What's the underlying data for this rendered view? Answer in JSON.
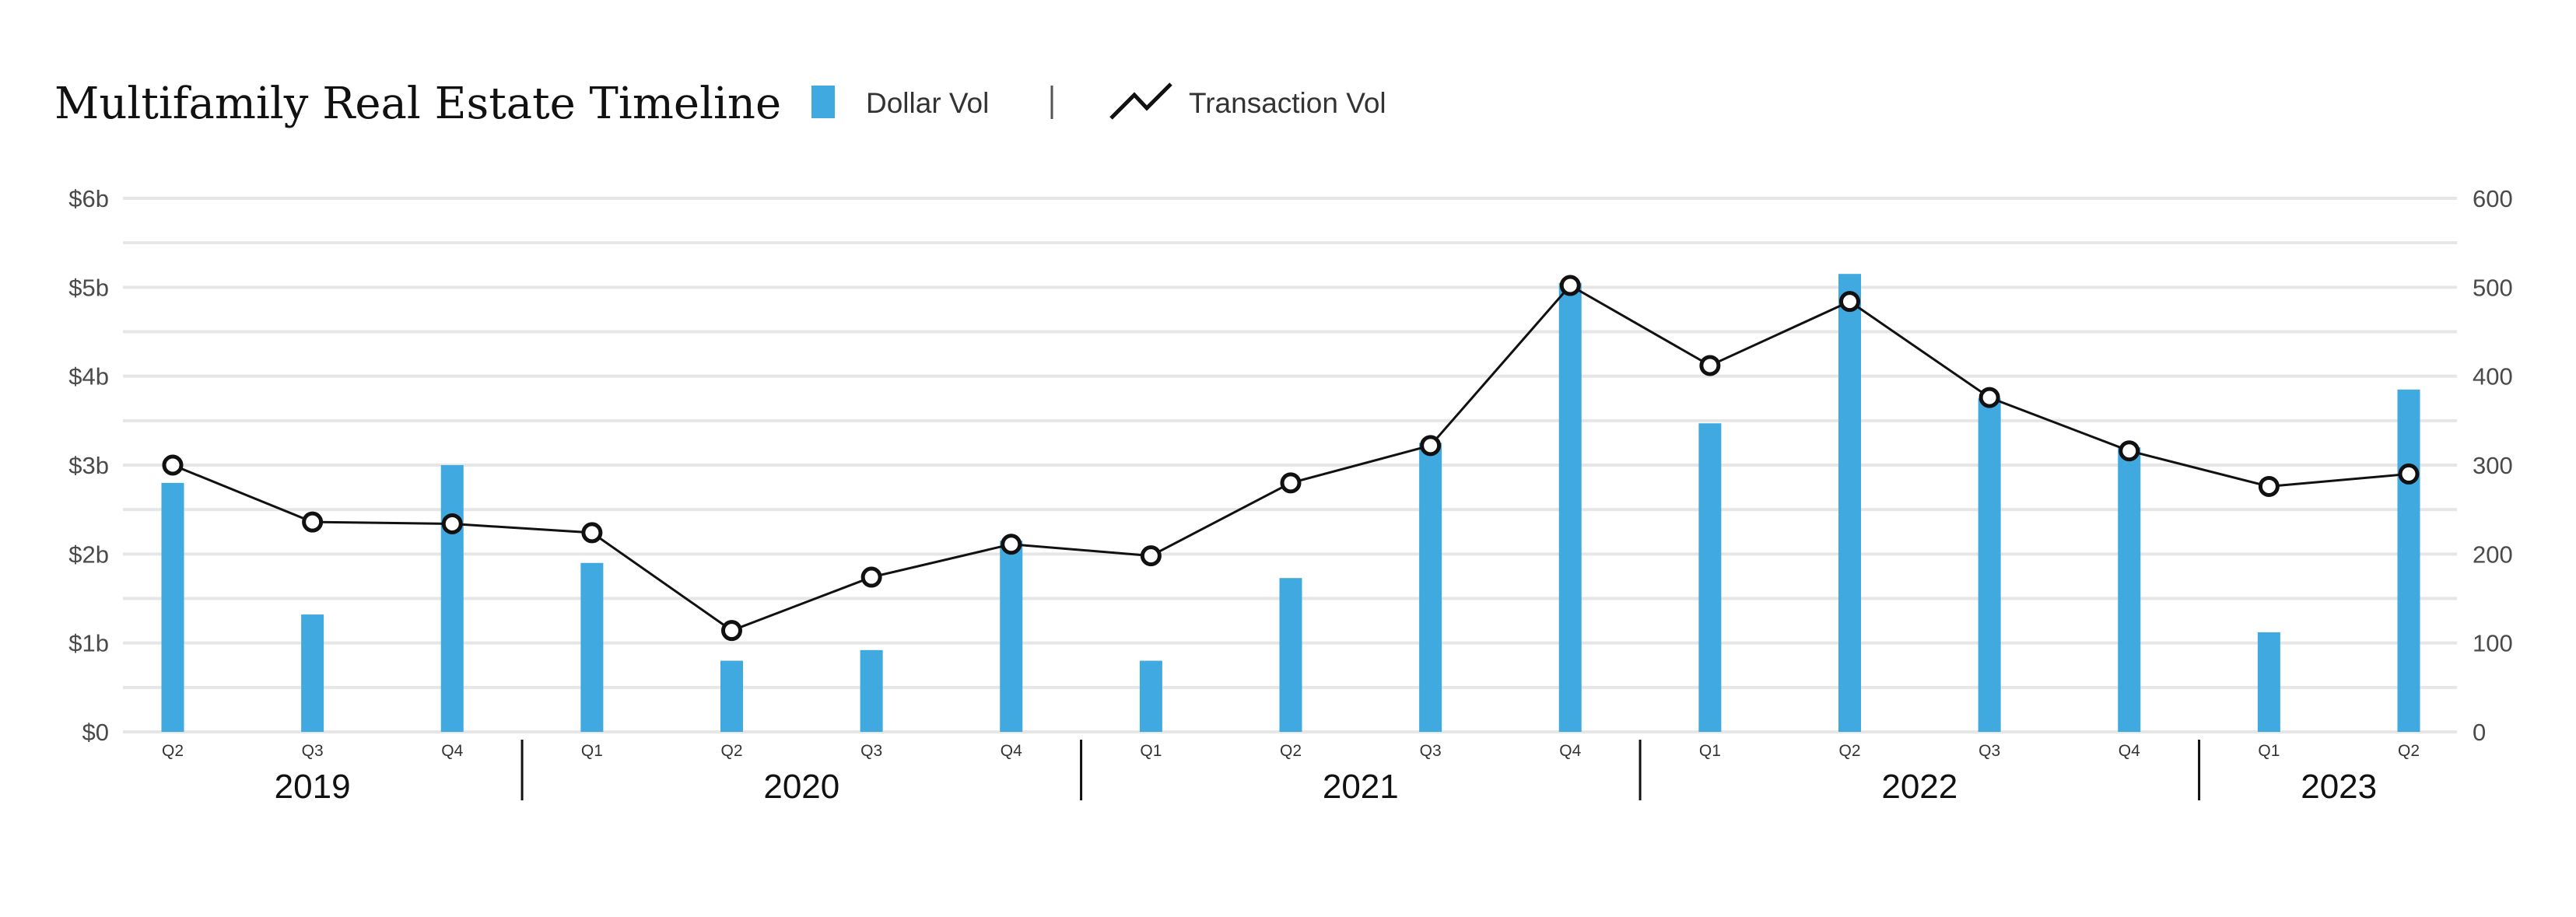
{
  "colors": {
    "bar": "#3FA9E0",
    "line": "#111111",
    "grid": "#e6e6e6",
    "marker_fill": "#ffffff"
  },
  "chart_data": {
    "type": "bar",
    "title": "Multifamily Real Estate Timeline",
    "legend": {
      "placement": "top",
      "entries": [
        {
          "label": "Dollar Vol",
          "icon": "bar-swatch-icon"
        },
        {
          "label": "Transaction Vol",
          "icon": "line-zigzag-icon"
        }
      ]
    },
    "categories": [
      "Q2",
      "Q3",
      "Q4",
      "Q1",
      "Q2",
      "Q3",
      "Q4",
      "Q1",
      "Q2",
      "Q3",
      "Q4",
      "Q1",
      "Q2",
      "Q3",
      "Q4",
      "Q1",
      "Q2"
    ],
    "years": [
      {
        "label": "2019",
        "start": 0,
        "end": 2
      },
      {
        "label": "2020",
        "start": 3,
        "end": 6
      },
      {
        "label": "2021",
        "start": 7,
        "end": 10
      },
      {
        "label": "2022",
        "start": 11,
        "end": 14
      },
      {
        "label": "2023",
        "start": 15,
        "end": 16
      }
    ],
    "series": [
      {
        "name": "Dollar Vol",
        "type": "bar",
        "axis": "left",
        "values": [
          2.8,
          1.32,
          3.0,
          1.9,
          0.8,
          0.92,
          2.15,
          0.8,
          1.73,
          3.25,
          5.05,
          3.47,
          5.15,
          3.75,
          3.2,
          1.12,
          3.85
        ]
      },
      {
        "name": "Transaction Vol",
        "type": "line",
        "axis": "right",
        "values": [
          300,
          236,
          234,
          224,
          114,
          174,
          211,
          198,
          280,
          322,
          502,
          412,
          484,
          376,
          316,
          276,
          290
        ]
      }
    ],
    "y_left": {
      "ylim": [
        0,
        6
      ],
      "ticks": [
        0,
        1,
        2,
        3,
        4,
        5,
        6
      ],
      "tick_labels": [
        "$0",
        "$1b",
        "$2b",
        "$3b",
        "$4b",
        "$5b",
        "$6b"
      ]
    },
    "y_right": {
      "ylim": [
        0,
        600
      ],
      "ticks": [
        0,
        100,
        200,
        300,
        400,
        500,
        600
      ],
      "tick_labels": [
        "0",
        "100",
        "200",
        "300",
        "400",
        "500",
        "600"
      ]
    },
    "grid": true
  }
}
